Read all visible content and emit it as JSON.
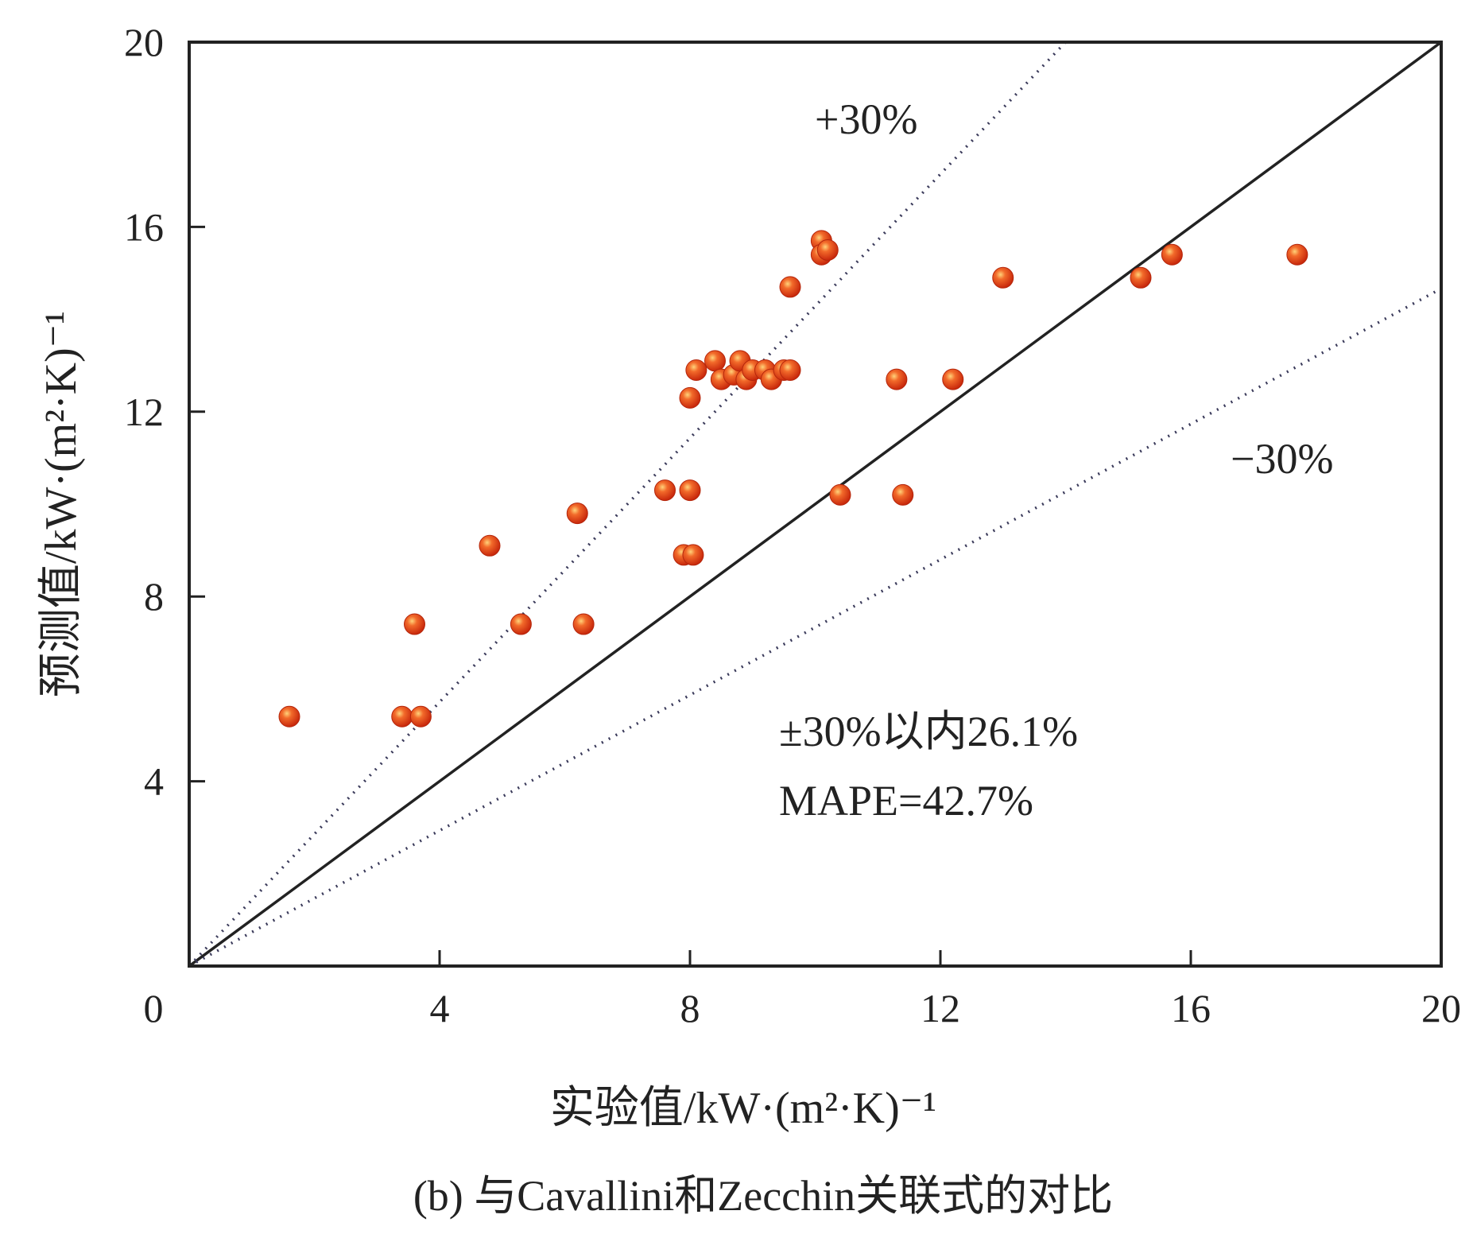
{
  "chart_data": {
    "type": "scatter",
    "caption": "(b) 与Cavallini和Zecchin关联式的对比",
    "xlabel": "实验值/kW·(m²·K)⁻¹",
    "ylabel": "预测值/kW·(m²·K)⁻¹",
    "xlim": [
      0,
      20
    ],
    "ylim": [
      0,
      20
    ],
    "xticks": [
      "0",
      "4",
      "8",
      "12",
      "16",
      "20"
    ],
    "yticks": [
      "4",
      "8",
      "12",
      "16",
      "20"
    ],
    "xtick_values": [
      0,
      4,
      8,
      12,
      16,
      20
    ],
    "ytick_values": [
      4,
      8,
      12,
      16,
      20
    ],
    "grid": false,
    "reference_lines": [
      {
        "label": "",
        "slope": 1.0,
        "style": "solid"
      },
      {
        "label": "+30%",
        "slope": 1.4286,
        "style": "dotted"
      },
      {
        "label": "−30%",
        "slope": 0.7333,
        "style": "dotted"
      }
    ],
    "annotations": [
      "±30%以内26.1%",
      "MAPE=42.7%"
    ],
    "marker_color": "#e8431c",
    "points": [
      [
        1.6,
        5.4
      ],
      [
        3.4,
        5.4
      ],
      [
        3.7,
        5.4
      ],
      [
        3.6,
        7.4
      ],
      [
        4.8,
        9.1
      ],
      [
        5.3,
        7.4
      ],
      [
        6.2,
        9.8
      ],
      [
        6.3,
        7.4
      ],
      [
        7.6,
        10.3
      ],
      [
        8.0,
        10.3
      ],
      [
        7.9,
        8.9
      ],
      [
        8.05,
        8.9
      ],
      [
        8.0,
        12.3
      ],
      [
        8.1,
        12.9
      ],
      [
        8.4,
        13.1
      ],
      [
        8.5,
        12.7
      ],
      [
        8.7,
        12.8
      ],
      [
        8.8,
        13.1
      ],
      [
        8.9,
        12.7
      ],
      [
        9.0,
        12.9
      ],
      [
        9.2,
        12.9
      ],
      [
        9.3,
        12.7
      ],
      [
        9.5,
        12.9
      ],
      [
        9.6,
        12.9
      ],
      [
        9.6,
        14.7
      ],
      [
        10.1,
        15.7
      ],
      [
        10.1,
        15.4
      ],
      [
        10.2,
        15.5
      ],
      [
        10.4,
        10.2
      ],
      [
        11.3,
        12.7
      ],
      [
        11.4,
        10.2
      ],
      [
        12.2,
        12.7
      ],
      [
        13.0,
        14.9
      ],
      [
        15.2,
        14.9
      ],
      [
        15.7,
        15.4
      ],
      [
        17.7,
        15.4
      ]
    ]
  }
}
